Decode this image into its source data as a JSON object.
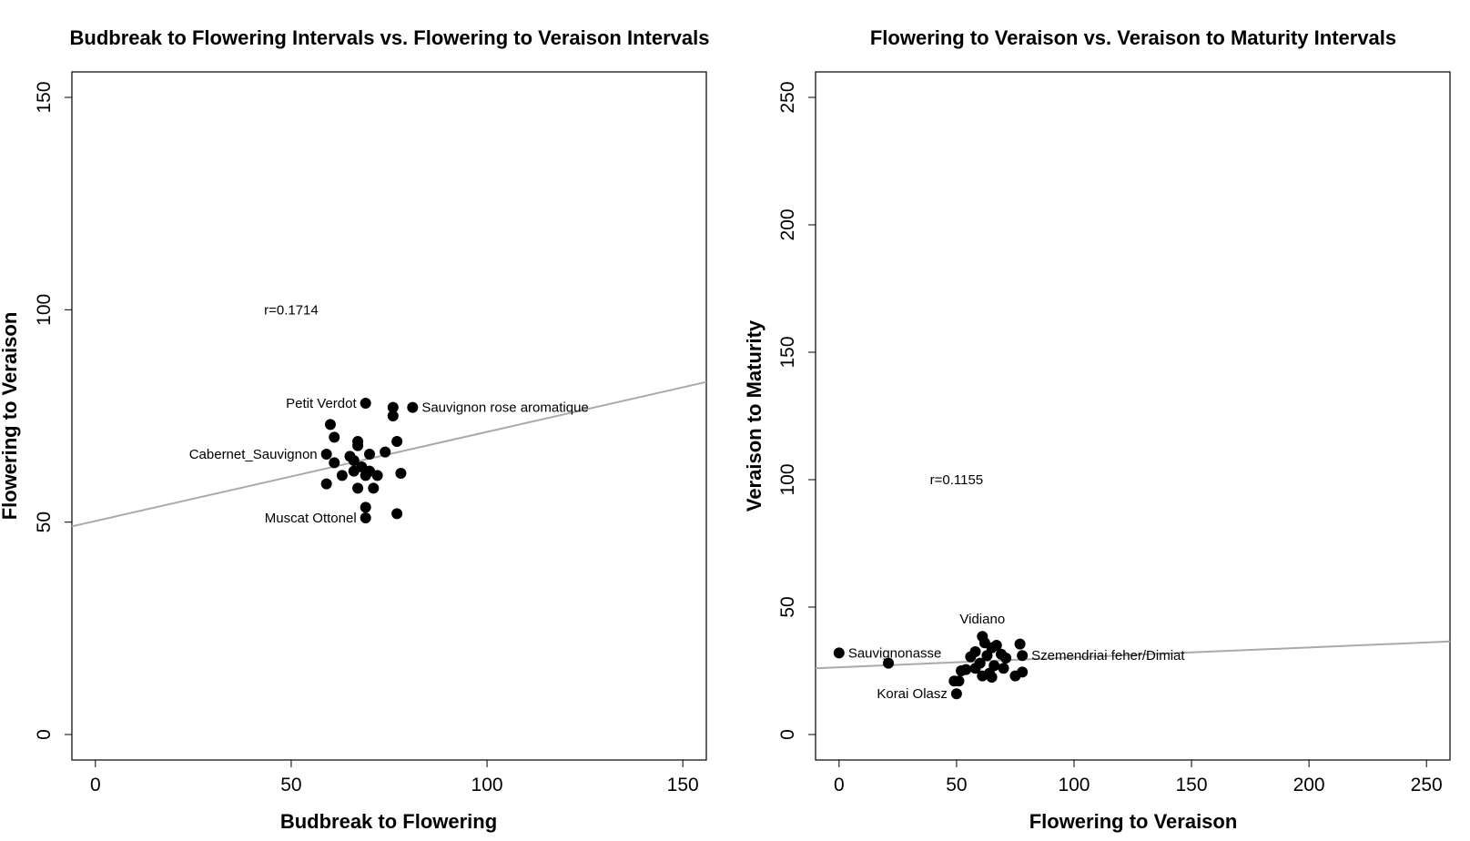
{
  "chart_data": [
    {
      "type": "scatter",
      "title": "Budbreak to Flowering Intervals vs. Flowering to Veraison Intervals",
      "xlabel": "Budbreak to Flowering",
      "ylabel": "Flowering to Veraison",
      "xlim": [
        -6,
        156
      ],
      "ylim": [
        -6,
        156
      ],
      "xticks": [
        0,
        50,
        100,
        150
      ],
      "yticks": [
        0,
        50,
        100,
        150
      ],
      "correlation_label": "r=0.1714",
      "correlation_position": [
        50,
        100
      ],
      "regression_line": {
        "x": [
          -6,
          156
        ],
        "y": [
          49,
          83
        ],
        "color": "#aaaaaa"
      },
      "points": [
        {
          "x": 69,
          "y": 78,
          "label": "Petit Verdot",
          "label_side": "left"
        },
        {
          "x": 76,
          "y": 77
        },
        {
          "x": 81,
          "y": 77,
          "label": "Sauvignon rose aromatique",
          "label_side": "right"
        },
        {
          "x": 76,
          "y": 75
        },
        {
          "x": 60,
          "y": 73
        },
        {
          "x": 61,
          "y": 70
        },
        {
          "x": 67,
          "y": 69
        },
        {
          "x": 77,
          "y": 69
        },
        {
          "x": 67,
          "y": 68
        },
        {
          "x": 70,
          "y": 66
        },
        {
          "x": 74,
          "y": 66.5
        },
        {
          "x": 59,
          "y": 66,
          "label": "Cabernet_Sauvignon",
          "label_side": "left"
        },
        {
          "x": 65,
          "y": 65.5
        },
        {
          "x": 66,
          "y": 64.5
        },
        {
          "x": 61,
          "y": 64
        },
        {
          "x": 68,
          "y": 63
        },
        {
          "x": 66,
          "y": 62
        },
        {
          "x": 70,
          "y": 62
        },
        {
          "x": 72,
          "y": 61
        },
        {
          "x": 78,
          "y": 61.5
        },
        {
          "x": 69,
          "y": 61
        },
        {
          "x": 63,
          "y": 61
        },
        {
          "x": 59,
          "y": 59
        },
        {
          "x": 67,
          "y": 58
        },
        {
          "x": 71,
          "y": 58
        },
        {
          "x": 69,
          "y": 53.5
        },
        {
          "x": 69,
          "y": 51,
          "label": "Muscat Ottonel",
          "label_side": "left"
        },
        {
          "x": 77,
          "y": 52
        }
      ]
    },
    {
      "type": "scatter",
      "title": "Flowering to Veraison vs. Veraison to Maturity Intervals",
      "xlabel": "Flowering to Veraison",
      "ylabel": "Veraison to Maturity",
      "xlim": [
        -10,
        260
      ],
      "ylim": [
        -10,
        260
      ],
      "xticks": [
        0,
        50,
        100,
        150,
        200,
        250
      ],
      "yticks": [
        0,
        50,
        100,
        150,
        200,
        250
      ],
      "correlation_label": "r=0.1155",
      "correlation_position": [
        50,
        100
      ],
      "regression_line": {
        "x": [
          -10,
          260
        ],
        "y": [
          26,
          36.5
        ],
        "color": "#aaaaaa"
      },
      "points": [
        {
          "x": 0,
          "y": 32,
          "label": "Sauvignonasse",
          "label_side": "right"
        },
        {
          "x": 21,
          "y": 28
        },
        {
          "x": 61,
          "y": 38.5,
          "label": "Vidiano",
          "label_side": "above"
        },
        {
          "x": 62,
          "y": 36
        },
        {
          "x": 65,
          "y": 34
        },
        {
          "x": 67,
          "y": 35
        },
        {
          "x": 58,
          "y": 32.5
        },
        {
          "x": 63,
          "y": 31
        },
        {
          "x": 69,
          "y": 31.5
        },
        {
          "x": 71,
          "y": 30
        },
        {
          "x": 56,
          "y": 30.5
        },
        {
          "x": 78,
          "y": 31,
          "label": "Szemendriai feher/Dimiat",
          "label_side": "right"
        },
        {
          "x": 77,
          "y": 35.5
        },
        {
          "x": 60,
          "y": 28
        },
        {
          "x": 66,
          "y": 27
        },
        {
          "x": 70,
          "y": 26
        },
        {
          "x": 58,
          "y": 26
        },
        {
          "x": 54,
          "y": 25.5
        },
        {
          "x": 52,
          "y": 25
        },
        {
          "x": 64,
          "y": 24
        },
        {
          "x": 61,
          "y": 23
        },
        {
          "x": 65,
          "y": 22.5
        },
        {
          "x": 75,
          "y": 23
        },
        {
          "x": 78,
          "y": 24.5
        },
        {
          "x": 49,
          "y": 21
        },
        {
          "x": 51,
          "y": 21
        },
        {
          "x": 50,
          "y": 16,
          "label": "Korai Olasz",
          "label_side": "left"
        }
      ]
    }
  ],
  "style": {
    "point_color": "#000000",
    "line_color": "#aaaaaa",
    "axis_color": "#000000",
    "background": "#ffffff"
  }
}
